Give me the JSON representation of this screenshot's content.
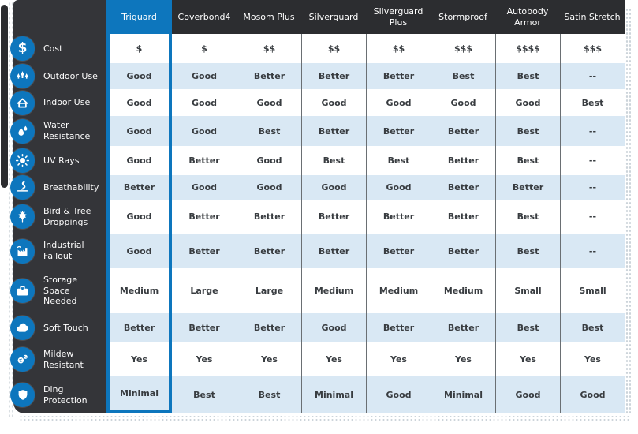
{
  "colors": {
    "accent": "#0d76bd",
    "sidebar_bg": "#343539",
    "header_bg": "#2c2d30",
    "row_alt": "#d9e8f4",
    "cell_text": "#383c40"
  },
  "table": {
    "highlighted_product": "Triguard",
    "products": [
      "Triguard",
      "Coverbond4",
      "Mosom Plus",
      "Silverguard",
      "Silverguard Plus",
      "Stormproof",
      "Autobody Armor",
      "Satin Stretch"
    ],
    "rows": [
      {
        "label": "Cost",
        "icon": "dollar-icon",
        "values": [
          "$",
          "$",
          "$$",
          "$$",
          "$$",
          "$$$",
          "$$$$",
          "$$$"
        ]
      },
      {
        "label": "Outdoor Use",
        "icon": "trees-icon",
        "values": [
          "Good",
          "Good",
          "Better",
          "Better",
          "Better",
          "Best",
          "Best",
          "--"
        ]
      },
      {
        "label": "Indoor Use",
        "icon": "house-icon",
        "values": [
          "Good",
          "Good",
          "Good",
          "Good",
          "Good",
          "Good",
          "Good",
          "Best"
        ]
      },
      {
        "label": "Water Resistance",
        "icon": "water-drop-icon",
        "values": [
          "Good",
          "Good",
          "Best",
          "Better",
          "Better",
          "Better",
          "Best",
          "--"
        ]
      },
      {
        "label": "UV Rays",
        "icon": "sun-icon",
        "values": [
          "Good",
          "Better",
          "Good",
          "Best",
          "Best",
          "Better",
          "Best",
          "--"
        ]
      },
      {
        "label": "Breathability",
        "icon": "airflow-icon",
        "values": [
          "Better",
          "Good",
          "Good",
          "Good",
          "Good",
          "Better",
          "Better",
          "--"
        ]
      },
      {
        "label": "Bird & Tree Droppings",
        "icon": "maple-leaf-icon",
        "values": [
          "Good",
          "Better",
          "Better",
          "Better",
          "Better",
          "Better",
          "Best",
          "--"
        ]
      },
      {
        "label": "Industrial Fallout",
        "icon": "factory-icon",
        "values": [
          "Good",
          "Better",
          "Better",
          "Better",
          "Better",
          "Better",
          "Best",
          "--"
        ]
      },
      {
        "label": "Storage Space Needed",
        "icon": "suitcase-icon",
        "values": [
          "Medium",
          "Large",
          "Large",
          "Medium",
          "Medium",
          "Medium",
          "Small",
          "Small"
        ]
      },
      {
        "label": "Soft Touch",
        "icon": "cloud-icon",
        "values": [
          "Better",
          "Better",
          "Better",
          "Good",
          "Better",
          "Better",
          "Best",
          "Best"
        ]
      },
      {
        "label": "Mildew Resistant",
        "icon": "mildew-icon",
        "values": [
          "Yes",
          "Yes",
          "Yes",
          "Yes",
          "Yes",
          "Yes",
          "Yes",
          "Yes"
        ]
      },
      {
        "label": "Ding Protection",
        "icon": "shield-icon",
        "values": [
          "Minimal",
          "Best",
          "Best",
          "Minimal",
          "Good",
          "Minimal",
          "Good",
          "Good"
        ]
      }
    ]
  }
}
